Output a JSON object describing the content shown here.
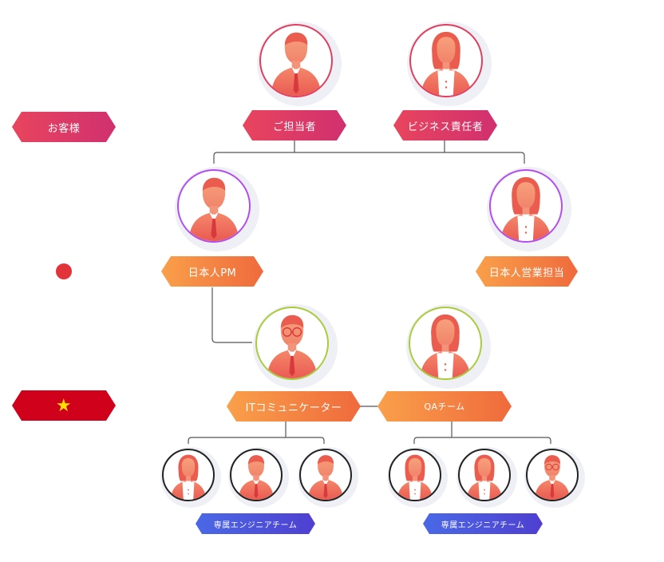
{
  "rows": {
    "customer_label": "お客様",
    "vietnam_star": "★"
  },
  "nodes": {
    "contact": "ご担当者",
    "business_manager": "ビジネス責任者",
    "jp_pm": "日本人PM",
    "jp_sales": "日本人営業担当",
    "it_communicator": "ITコミュニケーター",
    "qa_team": "QAチーム",
    "eng_team_1": "専属エンジニアチーム",
    "eng_team_2": "専属エンジニアチーム"
  },
  "colors": {
    "customer": "#d0306f",
    "japan": "#ef6a3c",
    "vietnam": "#d0021b",
    "engineer": "#4a69e6",
    "line": "#555555"
  },
  "icons": {
    "man": "man-avatar-icon",
    "woman": "woman-avatar-icon",
    "glasses_man": "man-with-glasses-avatar-icon"
  }
}
